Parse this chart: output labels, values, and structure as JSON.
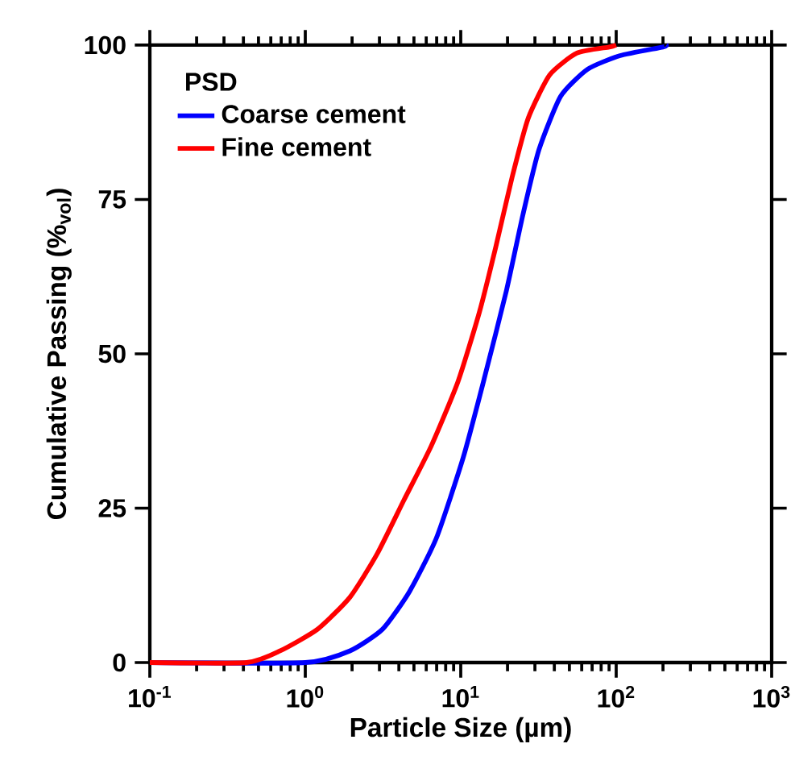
{
  "chart_data": {
    "type": "line",
    "xlabel": "Particle Size (µm)",
    "ylabel": "Cumulative Passing (%$_{vol}$)",
    "legend_title": "PSD",
    "legend": "top left",
    "log": "x",
    "grid": false,
    "marker": "none",
    "line_style": "solid",
    "xlim": [
      0.1,
      1000
    ],
    "ylim": [
      0,
      100
    ],
    "xticks": [
      {
        "value": 0.1,
        "label": "10$^{-1}$"
      },
      {
        "value": 1,
        "label": "10$^{0}$"
      },
      {
        "value": 10,
        "label": "10$^{1}$"
      },
      {
        "value": 100,
        "label": "10$^{2}$"
      },
      {
        "value": 1000,
        "label": "10$^{3}$"
      }
    ],
    "yticks": [
      0,
      25,
      50,
      75,
      100
    ],
    "series": [
      {
        "name": "Coarse cement",
        "color": "#0000ff",
        "x": [
          0.1,
          1.0,
          1.94,
          3.14,
          4.68,
          6.98,
          10.4,
          14.3,
          19.7,
          25.1,
          31.8,
          43.9,
          65.5,
          106,
          200,
          210
        ],
        "values": [
          0,
          0,
          1.9,
          5.4,
          11.5,
          20.2,
          33.3,
          46.4,
          60.3,
          72.5,
          83.0,
          91.7,
          96.1,
          98.3,
          99.7,
          100
        ]
      },
      {
        "name": "Fine cement",
        "color": "#ff0000",
        "x": [
          0.1,
          0.42,
          0.69,
          1.2,
          1.94,
          2.9,
          4.31,
          6.44,
          9.6,
          13.2,
          16.8,
          21.4,
          27.2,
          37.4,
          55.8,
          90.2,
          100
        ],
        "values": [
          0,
          0,
          1.9,
          5.4,
          10.6,
          17.6,
          26.3,
          35.0,
          45.5,
          56.8,
          67.3,
          78.6,
          88.2,
          95.2,
          98.7,
          99.7,
          100
        ]
      }
    ]
  }
}
